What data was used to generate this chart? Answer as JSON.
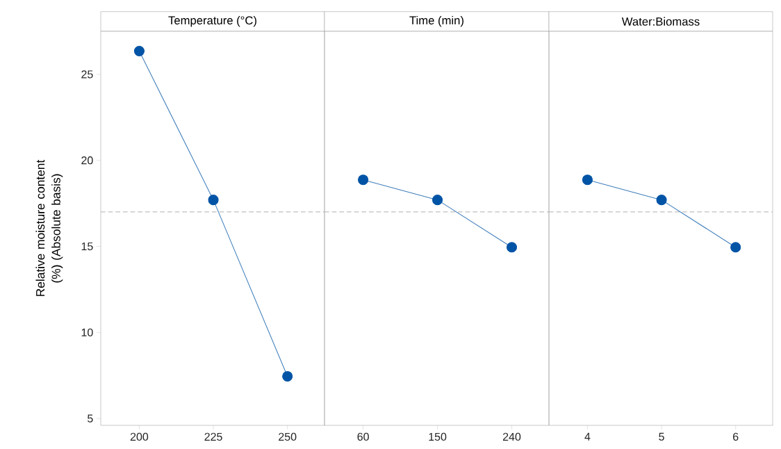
{
  "chart_data": [
    {
      "type": "line",
      "title": "Temperature (°C)",
      "ylabel": "Relative moisture content (%) (Absolute basis)",
      "categories": [
        "200",
        "225",
        "250"
      ],
      "series": [
        {
          "color": "#0054a6",
          "values": [
            26.35,
            17.7,
            7.45
          ]
        }
      ],
      "ylim": [
        4.6,
        27.5
      ],
      "yticks": [
        5,
        10,
        15,
        20,
        25
      ],
      "marker": "circle",
      "grid": false,
      "ref_lines": [
        {
          "axis": "y",
          "value": 17.0,
          "color": "#c0c0c0",
          "line_style": "dashed"
        }
      ]
    },
    {
      "type": "line",
      "title": "Time (min)",
      "categories": [
        "60",
        "150",
        "240"
      ],
      "series": [
        {
          "color": "#0054a6",
          "values": [
            18.87,
            17.7,
            14.95
          ]
        }
      ],
      "ylim": [
        4.6,
        27.5
      ],
      "tick_labels": "x",
      "marker": "circle",
      "grid": false,
      "ref_lines": [
        {
          "axis": "y",
          "value": 17.0,
          "color": "#c0c0c0",
          "line_style": "dashed"
        }
      ]
    },
    {
      "type": "line",
      "title": "Water:Biomass",
      "categories": [
        "4",
        "5",
        "6"
      ],
      "series": [
        {
          "color": "#0054a6",
          "values": [
            18.87,
            17.7,
            14.95
          ]
        }
      ],
      "ylim": [
        4.6,
        27.5
      ],
      "tick_labels": "x",
      "marker": "circle",
      "grid": false,
      "ref_lines": [
        {
          "axis": "y",
          "value": 17.0,
          "color": "#c0c0c0",
          "line_style": "dashed"
        }
      ]
    }
  ]
}
